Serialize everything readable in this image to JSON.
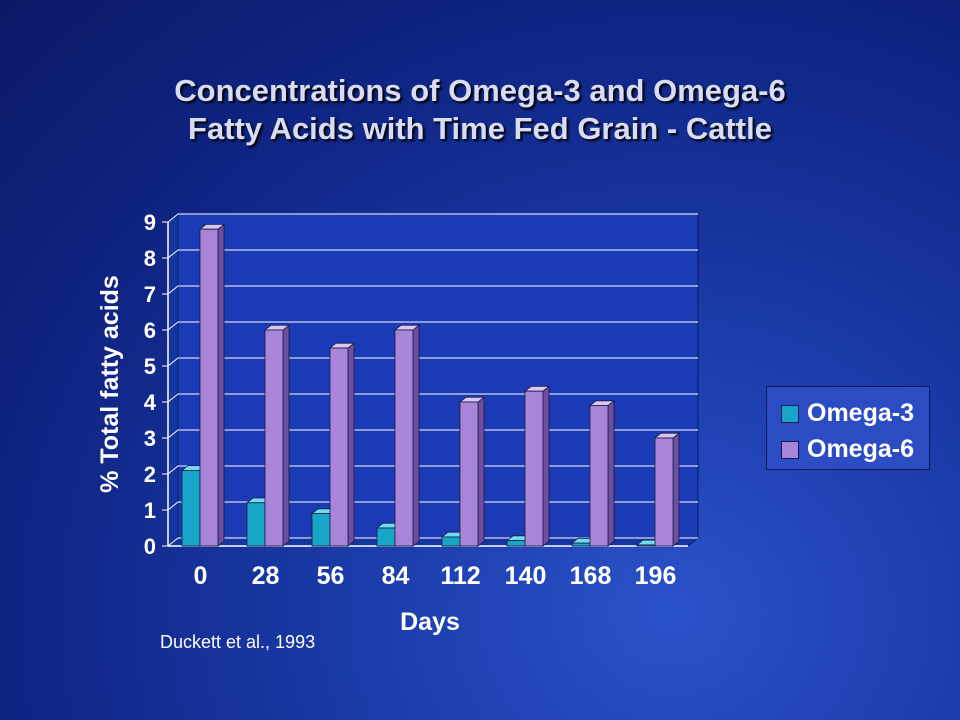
{
  "page": {
    "title_line1": "Concentrations of Omega-3 and Omega-6",
    "title_line2": "Fatty Acids with Time Fed Grain - Cattle",
    "source": "Duckett et al., 1993"
  },
  "chart_data": {
    "type": "bar",
    "title": "Concentrations of Omega-3 and Omega-6 Fatty Acids with Time Fed Grain - Cattle",
    "xlabel": "Days",
    "ylabel": "% Total fatty acids",
    "categories": [
      "0",
      "28",
      "56",
      "84",
      "112",
      "140",
      "168",
      "196"
    ],
    "series": [
      {
        "name": "Omega-3",
        "values": [
          2.1,
          1.2,
          0.9,
          0.5,
          0.25,
          0.15,
          0.08,
          0.03
        ]
      },
      {
        "name": "Omega-6",
        "values": [
          8.8,
          6.0,
          5.5,
          6.0,
          4.0,
          4.3,
          3.9,
          3.0
        ]
      }
    ],
    "ylim": [
      0,
      9
    ],
    "yticks": [
      "0",
      "1",
      "2",
      "3",
      "4",
      "5",
      "6",
      "7",
      "8",
      "9"
    ],
    "grid": true,
    "legend": "right",
    "colors": {
      "omega3_front": "#17a6c8",
      "omega3_top": "#6fdcf2",
      "omega3_side": "#0c6d86",
      "omega6_front": "#a885d8",
      "omega6_top": "#d9c4f2",
      "omega6_side": "#6e4ea0",
      "plot_bg": "#1a3bb5",
      "axis": "#ffffff"
    }
  }
}
